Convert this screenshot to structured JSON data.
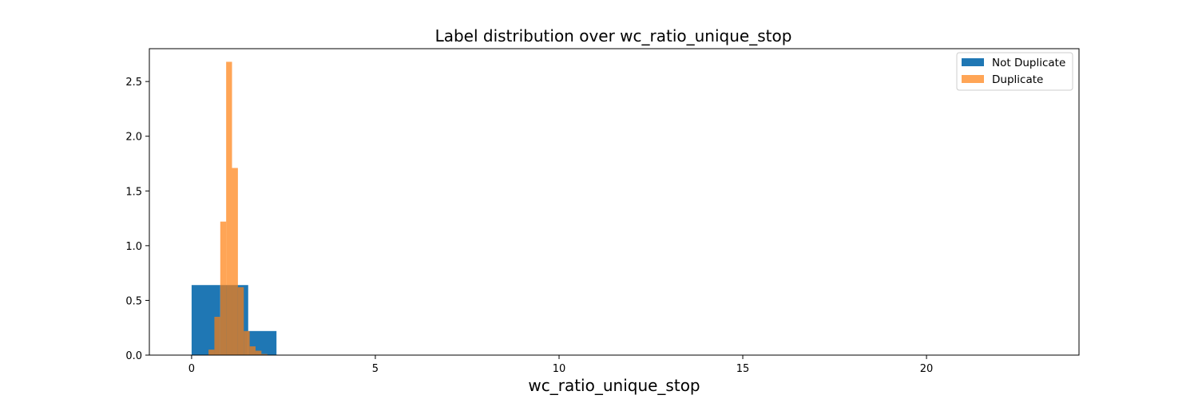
{
  "chart_data": {
    "type": "bar",
    "title": "Label distribution over wc_ratio_unique_stop",
    "xlabel": "wc_ratio_unique_stop",
    "ylabel": "",
    "xlim": [
      -1.15,
      24.15
    ],
    "ylim": [
      0,
      2.8
    ],
    "xticks": [
      0,
      5,
      10,
      15,
      20
    ],
    "yticks": [
      0.0,
      0.5,
      1.0,
      1.5,
      2.0,
      2.5
    ],
    "xtick_labels": [
      "0",
      "5",
      "10",
      "15",
      "20"
    ],
    "ytick_labels": [
      "0.0",
      "0.5",
      "1.0",
      "1.5",
      "2.0",
      "2.5"
    ],
    "legend_position": "top-right",
    "histogram": true,
    "series": [
      {
        "name": "Not Duplicate",
        "color": "#1f77b4",
        "opacity": 1.0,
        "bins": [
          {
            "x0": 0.0,
            "x1": 0.77,
            "value": 0.64
          },
          {
            "x0": 0.77,
            "x1": 1.54,
            "value": 0.64
          },
          {
            "x0": 1.54,
            "x1": 2.31,
            "value": 0.22
          }
        ]
      },
      {
        "name": "Duplicate",
        "color": "#ff7f0e",
        "opacity": 0.7,
        "bins": [
          {
            "x0": 0.3,
            "x1": 0.46,
            "value": 0.0
          },
          {
            "x0": 0.46,
            "x1": 0.62,
            "value": 0.05
          },
          {
            "x0": 0.62,
            "x1": 0.78,
            "value": 0.35
          },
          {
            "x0": 0.78,
            "x1": 0.94,
            "value": 1.22
          },
          {
            "x0": 0.94,
            "x1": 1.1,
            "value": 2.68
          },
          {
            "x0": 1.1,
            "x1": 1.26,
            "value": 1.71
          },
          {
            "x0": 1.26,
            "x1": 1.42,
            "value": 0.62
          },
          {
            "x0": 1.42,
            "x1": 1.58,
            "value": 0.22
          },
          {
            "x0": 1.58,
            "x1": 1.74,
            "value": 0.08
          },
          {
            "x0": 1.74,
            "x1": 1.9,
            "value": 0.04
          },
          {
            "x0": 1.9,
            "x1": 2.06,
            "value": 0.01
          }
        ]
      }
    ]
  }
}
